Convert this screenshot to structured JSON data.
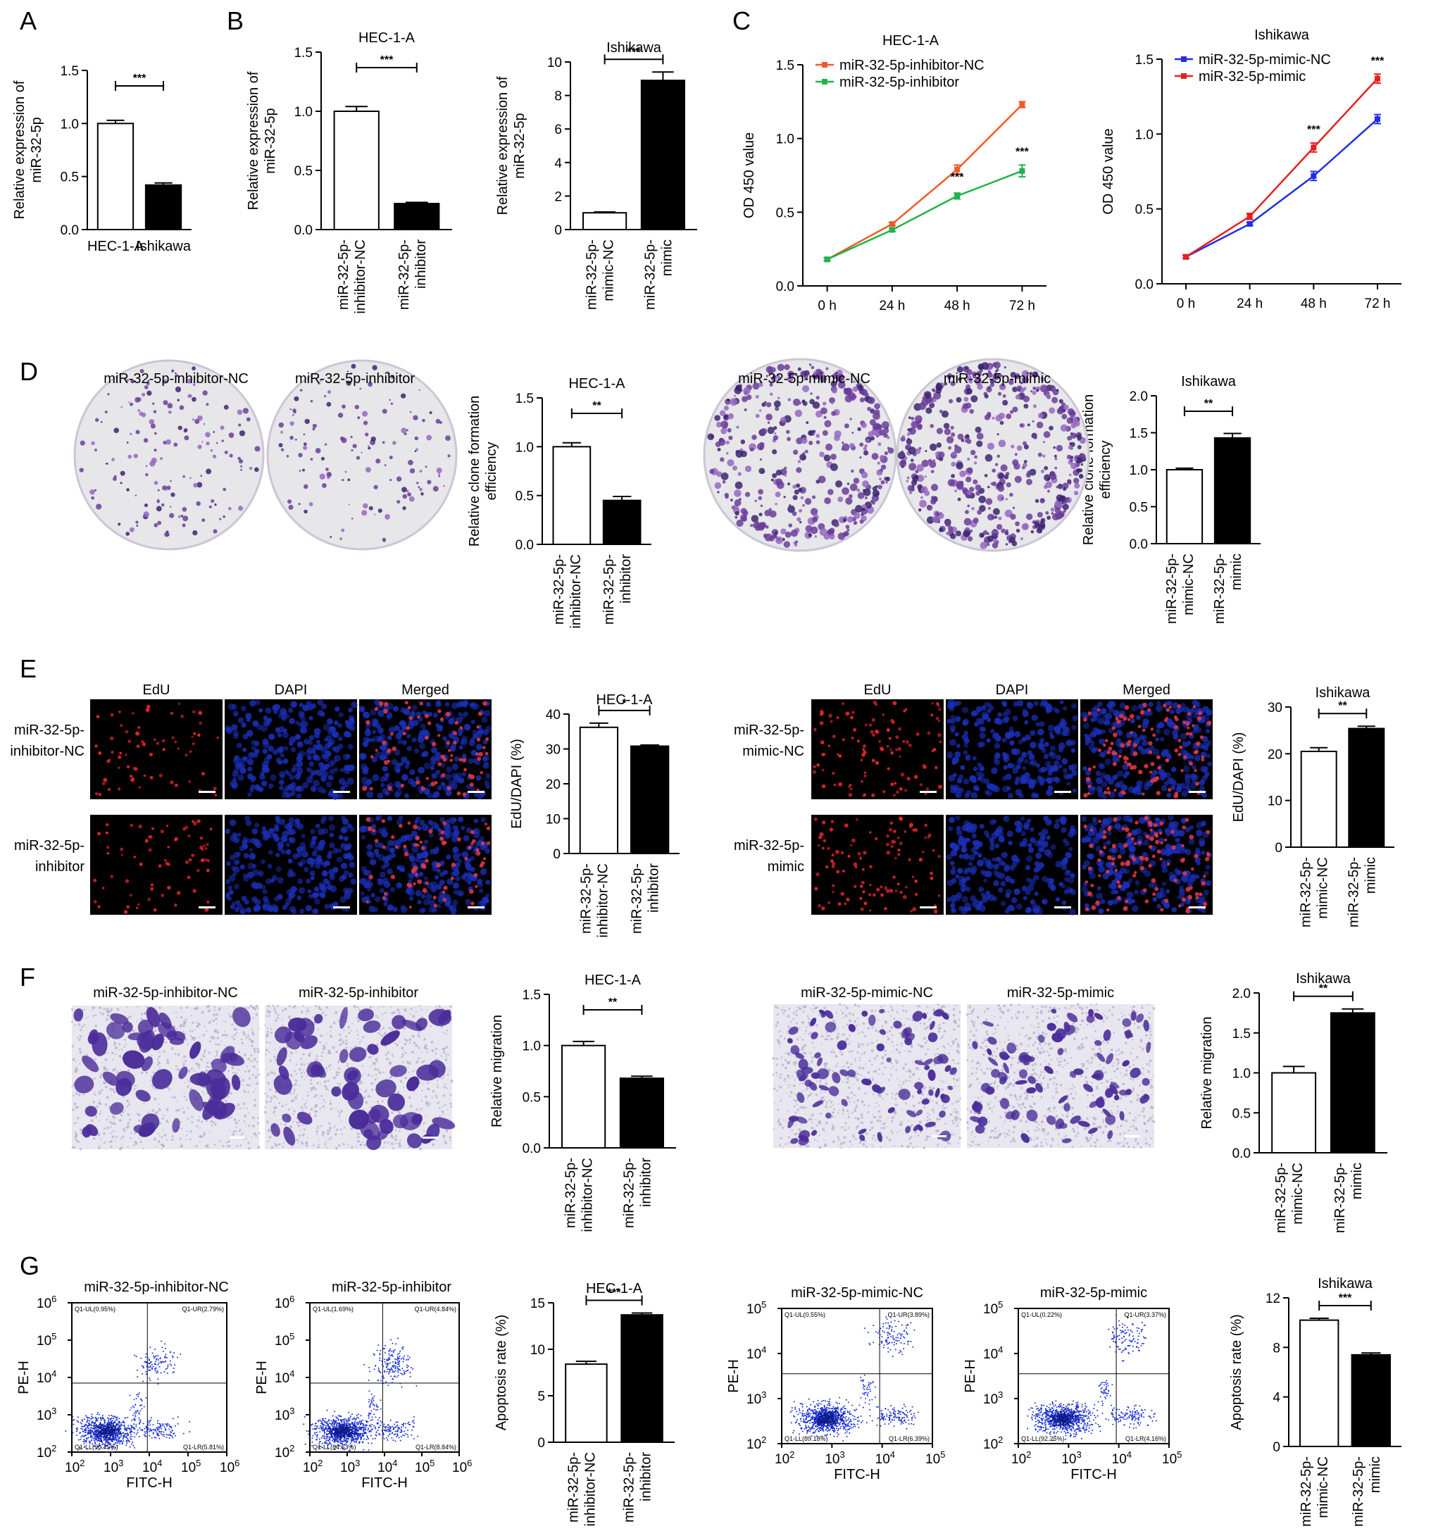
{
  "panel_labels": [
    "A",
    "B",
    "C",
    "D",
    "E",
    "F",
    "G"
  ],
  "bar_charts": [
    {
      "id": "A",
      "title": "",
      "ylabel": "Relative expression of miR-32-5p",
      "categories": [
        "HEC-1-A",
        "Ishikawa"
      ],
      "values": [
        1.0,
        0.42
      ],
      "errors": [
        0.03,
        0.02
      ],
      "ylim": [
        0,
        1.5
      ],
      "yticks": [
        "0.0",
        "0.5",
        "1.0",
        "1.5"
      ],
      "sig": "***"
    },
    {
      "id": "B1",
      "title": "HEC-1-A",
      "ylabel": "Relative expression of miR-32-5p",
      "categories": [
        "miR-32-5p-inhibitor-NC",
        "miR-32-5p-inhibitor"
      ],
      "values": [
        1.0,
        0.22
      ],
      "errors": [
        0.04,
        0.01
      ],
      "ylim": [
        0,
        1.5
      ],
      "yticks": [
        "0.0",
        "0.5",
        "1.0",
        "1.5"
      ],
      "sig": "***"
    },
    {
      "id": "B2",
      "title": "Ishikawa",
      "ylabel": "Relative expression of miR-32-5p",
      "categories": [
        "miR-32-5p-mimic-NC",
        "miR-32-5p-mimic"
      ],
      "values": [
        1.0,
        8.9
      ],
      "errors": [
        0.05,
        0.5
      ],
      "ylim": [
        0,
        10
      ],
      "yticks": [
        "0",
        "2",
        "4",
        "6",
        "8",
        "10"
      ],
      "sig": "***"
    },
    {
      "id": "D1",
      "title": "HEC-1-A",
      "ylabel": "Relative clone formation efficiency",
      "categories": [
        "miR-32-5p-inhibitor-NC",
        "miR-32-5p-inhibitor"
      ],
      "values": [
        1.0,
        0.45
      ],
      "errors": [
        0.04,
        0.04
      ],
      "ylim": [
        0,
        1.5
      ],
      "yticks": [
        "0.0",
        "0.5",
        "1.0",
        "1.5"
      ],
      "sig": "**"
    },
    {
      "id": "D2",
      "title": "Ishikawa",
      "ylabel": "Relative clone formation efficiency",
      "categories": [
        "miR-32-5p-mimic-NC",
        "miR-32-5p-mimic"
      ],
      "values": [
        1.0,
        1.43
      ],
      "errors": [
        0.02,
        0.06
      ],
      "ylim": [
        0,
        2.0
      ],
      "yticks": [
        "0.0",
        "0.5",
        "1.0",
        "1.5",
        "2.0"
      ],
      "sig": "**"
    },
    {
      "id": "E1",
      "title": "HEC-1-A",
      "ylabel": "EdU/DAPI (%)",
      "categories": [
        "miR-32-5p-inhibitor-NC",
        "miR-32-5p-inhibitor"
      ],
      "values": [
        36.2,
        30.8
      ],
      "errors": [
        1.2,
        0.3
      ],
      "ylim": [
        0,
        40
      ],
      "yticks": [
        "0",
        "10",
        "20",
        "30",
        "40"
      ],
      "sig": "*"
    },
    {
      "id": "E2",
      "title": "Ishikawa",
      "ylabel": "EdU/DAPI (%)",
      "categories": [
        "miR-32-5p-mimic-NC",
        "miR-32-5p-mimic"
      ],
      "values": [
        20.5,
        25.4
      ],
      "errors": [
        0.8,
        0.5
      ],
      "ylim": [
        0,
        30
      ],
      "yticks": [
        "0",
        "10",
        "20",
        "30"
      ],
      "sig": "**"
    },
    {
      "id": "F1",
      "title": "HEC-1-A",
      "ylabel": "Relative migration",
      "categories": [
        "miR-32-5p-inhibitor-NC",
        "miR-32-5p-inhibitor"
      ],
      "values": [
        1.0,
        0.68
      ],
      "errors": [
        0.04,
        0.02
      ],
      "ylim": [
        0,
        1.5
      ],
      "yticks": [
        "0.0",
        "0.5",
        "1.0",
        "1.5"
      ],
      "sig": "**"
    },
    {
      "id": "F2",
      "title": "Ishikawa",
      "ylabel": "Relative migration",
      "categories": [
        "miR-32-5p-mimic-NC",
        "miR-32-5p-mimic"
      ],
      "values": [
        1.0,
        1.75
      ],
      "errors": [
        0.08,
        0.05
      ],
      "ylim": [
        0,
        2.0
      ],
      "yticks": [
        "0.0",
        "0.5",
        "1.0",
        "1.5",
        "2.0"
      ],
      "sig": "**"
    },
    {
      "id": "G1",
      "title": "HEC-1-A",
      "ylabel": "Apoptosis rate (%)",
      "categories": [
        "miR-32-5p-inhibitor-NC",
        "miR-32-5p-inhibitor"
      ],
      "values": [
        8.4,
        13.7
      ],
      "errors": [
        0.3,
        0.2
      ],
      "ylim": [
        0,
        15
      ],
      "yticks": [
        "0",
        "5",
        "10",
        "15"
      ],
      "sig": "***"
    },
    {
      "id": "G2",
      "title": "Ishikawa",
      "ylabel": "Apoptosis rate (%)",
      "categories": [
        "miR-32-5p-mimic-NC",
        "miR-32-5p-mimic"
      ],
      "values": [
        10.2,
        7.4
      ],
      "errors": [
        0.15,
        0.15
      ],
      "ylim": [
        0,
        12
      ],
      "yticks": [
        "0",
        "4",
        "8",
        "12"
      ],
      "sig": "***"
    }
  ],
  "line_charts": [
    {
      "id": "C1",
      "title": "HEC-1-A",
      "ylabel": "OD 450 value",
      "x": [
        "0 h",
        "24 h",
        "48 h",
        "72 h"
      ],
      "ylim": [
        0,
        1.5
      ],
      "yticks": [
        "0.0",
        "0.5",
        "1.0",
        "1.5"
      ],
      "series": [
        {
          "name": "miR-32-5p-inhibitor-NC",
          "color": "#f05a28",
          "values": [
            0.18,
            0.42,
            0.79,
            1.23
          ],
          "errors": [
            0.01,
            0.01,
            0.03,
            0.02
          ]
        },
        {
          "name": "miR-32-5p-inhibitor",
          "color": "#22b24c",
          "values": [
            0.18,
            0.38,
            0.61,
            0.78
          ],
          "errors": [
            0.01,
            0.01,
            0.02,
            0.04
          ]
        }
      ],
      "sig": [
        "",
        "",
        "***",
        "***"
      ]
    },
    {
      "id": "C2",
      "title": "Ishikawa",
      "ylabel": "OD 450 value",
      "x": [
        "0 h",
        "24 h",
        "48 h",
        "72 h"
      ],
      "ylim": [
        0,
        1.5
      ],
      "yticks": [
        "0.0",
        "0.5",
        "1.0",
        "1.5"
      ],
      "series": [
        {
          "name": "miR-32-5p-mimic-NC",
          "color": "#1f2ee6",
          "values": [
            0.18,
            0.4,
            0.72,
            1.1
          ],
          "errors": [
            0.01,
            0.01,
            0.03,
            0.03
          ]
        },
        {
          "name": "miR-32-5p-mimic",
          "color": "#e61f1f",
          "values": [
            0.18,
            0.45,
            0.91,
            1.37
          ],
          "errors": [
            0.01,
            0.02,
            0.03,
            0.03
          ]
        }
      ],
      "sig": [
        "",
        "",
        "***",
        "***"
      ]
    }
  ],
  "image_panels": {
    "D": {
      "plates": [
        "miR-32-5p-inhibitor-NC",
        "miR-32-5p-inhibitor",
        "miR-32-5p-mimic-NC",
        "miR-32-5p-mimic"
      ]
    },
    "E": {
      "columns": [
        "EdU",
        "DAPI",
        "Merged"
      ],
      "rows_left": [
        "miR-32-5p-inhibitor-NC",
        "miR-32-5p-inhibitor"
      ],
      "rows_right": [
        "miR-32-5p-mimic-NC",
        "miR-32-5p-mimic"
      ]
    },
    "F": {
      "titles": [
        "miR-32-5p-inhibitor-NC",
        "miR-32-5p-inhibitor",
        "miR-32-5p-mimic-NC",
        "miR-32-5p-mimic"
      ]
    }
  },
  "flow_plots": [
    {
      "title": "miR-32-5p-inhibitor-NC",
      "xlabel": "FITC-H",
      "ylabel": "PE-H",
      "q": [
        "Q1-UL(0.95%)",
        "Q1-UR(2.79%)",
        "Q1-LL(90.45%)",
        "Q1-LR(5.81%)"
      ],
      "exp": [
        2,
        6
      ]
    },
    {
      "title": "miR-32-5p-inhibitor",
      "xlabel": "FITC-H",
      "ylabel": "PE-H",
      "q": [
        "Q1-UL(1.69%)",
        "Q1-UR(4.84%)",
        "Q1-LL(84.63%)",
        "Q1-LR(8.84%)"
      ],
      "exp": [
        2,
        6
      ]
    },
    {
      "title": "miR-32-5p-mimic-NC",
      "xlabel": "FITC-H",
      "ylabel": "PE-H",
      "q": [
        "Q1-UL(0.55%)",
        "Q1-UR(3.89%)",
        "Q1-LL(89.18%)",
        "Q1-LR(6.39%)"
      ],
      "exp": [
        2,
        5
      ]
    },
    {
      "title": "miR-32-5p-mimic",
      "xlabel": "FITC-H",
      "ylabel": "PE-H",
      "q": [
        "Q1-UL(0.22%)",
        "Q1-UR(3.37%)",
        "Q1-LL(92.25%)",
        "Q1-LR(4.16%)"
      ],
      "exp": [
        2,
        5
      ]
    }
  ]
}
